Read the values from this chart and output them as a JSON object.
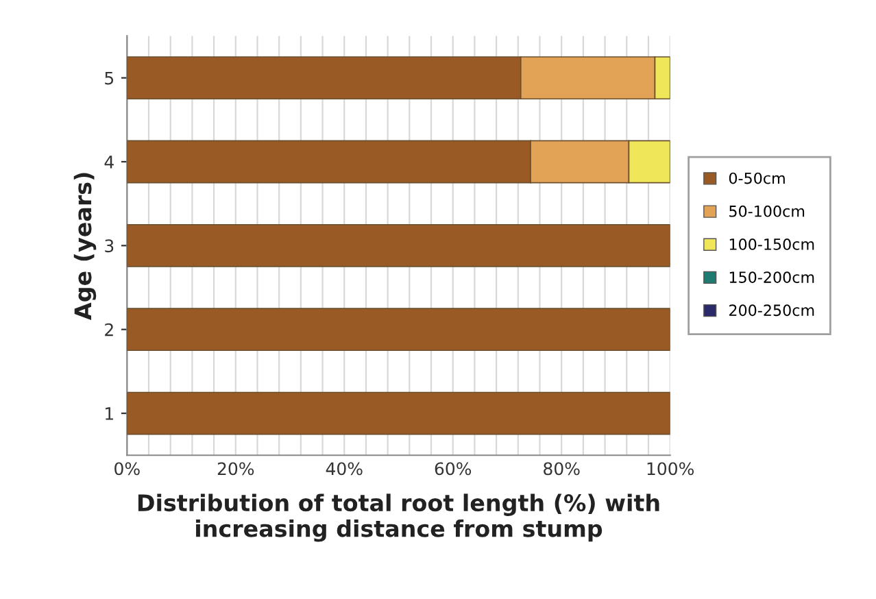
{
  "chart_data": {
    "type": "bar",
    "orientation": "horizontal",
    "stacked": true,
    "categories": [
      "5",
      "4",
      "3",
      "2",
      "1"
    ],
    "ylabel": "Age (years)",
    "xlabel": "Distribution of total root length (%) with\nincreasing distance from stump",
    "series": [
      {
        "name": "0-50cm",
        "color": "#9a5a25",
        "values": [
          72.5,
          74.3,
          100,
          100,
          100
        ]
      },
      {
        "name": "50-100cm",
        "color": "#e3a356",
        "values": [
          24.7,
          18.1,
          0,
          0,
          0
        ]
      },
      {
        "name": "100-150cm",
        "color": "#f0e65a",
        "values": [
          2.8,
          7.6,
          0,
          0,
          0
        ]
      },
      {
        "name": "150-200cm",
        "color": "#1f7a6f",
        "values": [
          0,
          0,
          0,
          0,
          0
        ]
      },
      {
        "name": "200-250cm",
        "color": "#2a2a6a",
        "values": [
          0,
          0,
          0,
          0,
          0
        ]
      }
    ],
    "xlim": [
      0,
      100
    ],
    "xticks": [
      {
        "value": 0,
        "label": "0%"
      },
      {
        "value": 4,
        "label": null
      },
      {
        "value": 8,
        "label": null
      },
      {
        "value": 12,
        "label": null
      },
      {
        "value": 16,
        "label": null
      },
      {
        "value": 20,
        "label": "20%"
      },
      {
        "value": 24,
        "label": null
      },
      {
        "value": 28,
        "label": null
      },
      {
        "value": 32,
        "label": null
      },
      {
        "value": 36,
        "label": null
      },
      {
        "value": 40,
        "label": "40%"
      },
      {
        "value": 44,
        "label": null
      },
      {
        "value": 48,
        "label": null
      },
      {
        "value": 52,
        "label": null
      },
      {
        "value": 56,
        "label": null
      },
      {
        "value": 60,
        "label": "60%"
      },
      {
        "value": 64,
        "label": null
      },
      {
        "value": 68,
        "label": null
      },
      {
        "value": 72,
        "label": null
      },
      {
        "value": 76,
        "label": null
      },
      {
        "value": 80,
        "label": "80%"
      },
      {
        "value": 84,
        "label": null
      },
      {
        "value": 88,
        "label": null
      },
      {
        "value": 92,
        "label": null
      },
      {
        "value": 96,
        "label": null
      },
      {
        "value": 100,
        "label": "100%"
      }
    ],
    "grid": "x",
    "legend": "right"
  }
}
